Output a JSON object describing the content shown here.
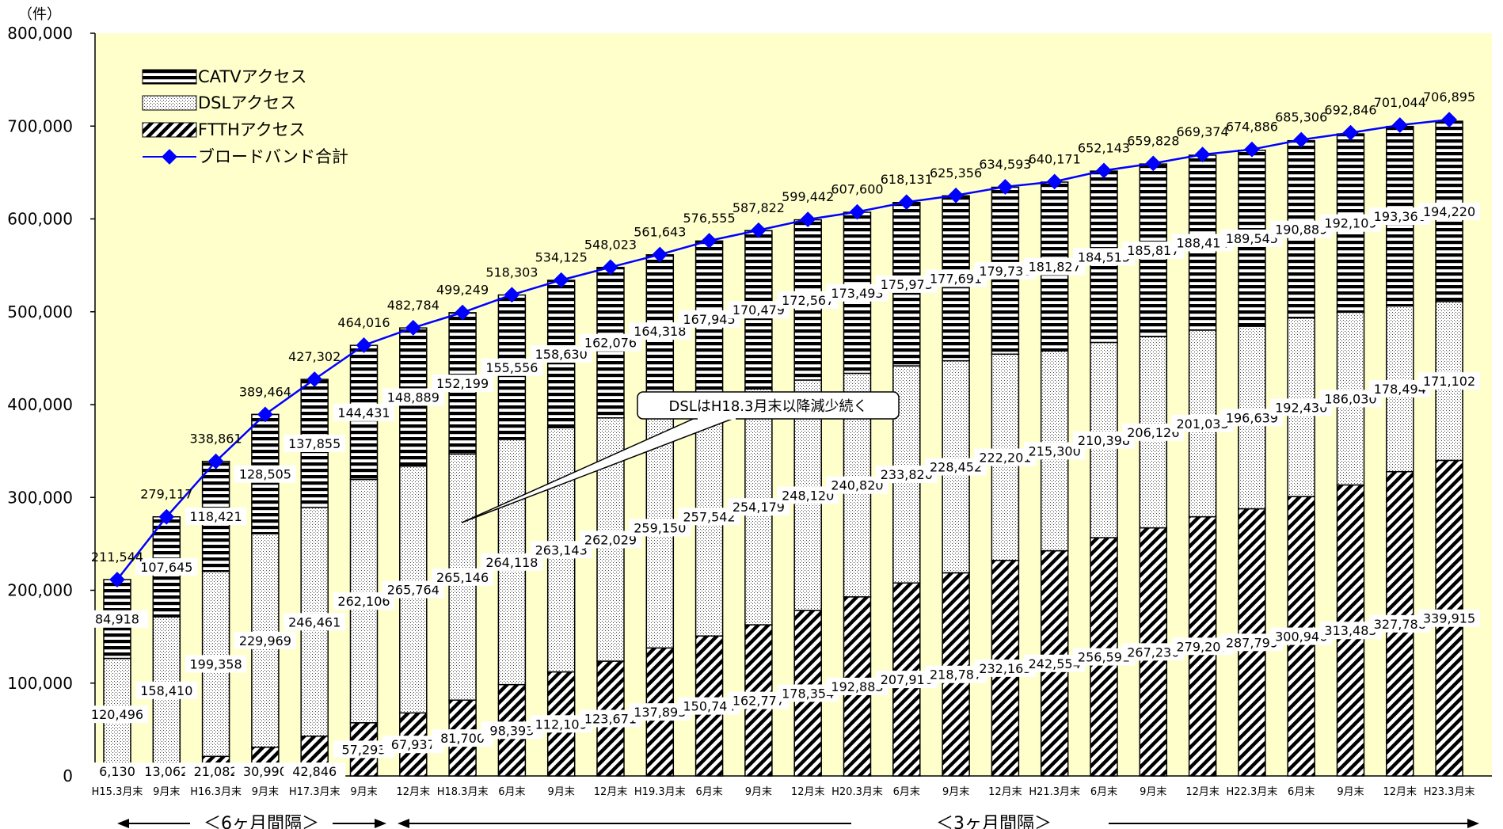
{
  "chart_data": {
    "type": "bar",
    "stacked": true,
    "y_unit": "（件）",
    "ylim": [
      0,
      800000
    ],
    "y_ticks": [
      "0",
      "100,000",
      "200,000",
      "300,000",
      "400,000",
      "500,000",
      "600,000",
      "700,000",
      "800,000"
    ],
    "grid": false,
    "legend_position": "top-left",
    "categories": [
      "H15.3月末",
      "9月末",
      "H16.3月末",
      "9月末",
      "H17.3月末",
      "9月末",
      "12月末",
      "H18.3月末",
      "6月末",
      "9月末",
      "12月末",
      "H19.3月末",
      "6月末",
      "9月末",
      "12月末",
      "H20.3月末",
      "6月末",
      "9月末",
      "12月末",
      "H21.3月末",
      "6月末",
      "9月末",
      "12月末",
      "H22.3月末",
      "6月末",
      "9月末",
      "12月末",
      "H23.3月末"
    ],
    "series": [
      {
        "name": "FTTHアクセス",
        "values": [
          6130,
          13062,
          21082,
          30990,
          42846,
          57293,
          67937,
          81700,
          98393,
          112109,
          123671,
          137893,
          150744,
          162777,
          178354,
          192883,
          207916,
          218787,
          232165,
          242554,
          256591,
          267230,
          279207,
          287799,
          300946,
          313485,
          327788,
          339915
        ]
      },
      {
        "name": "DSLアクセス",
        "values": [
          120496,
          158410,
          199358,
          229969,
          246461,
          262106,
          265764,
          265146,
          264118,
          263143,
          262029,
          259150,
          257542,
          254179,
          248120,
          240820,
          233820,
          228452,
          222201,
          215300,
          210398,
          206126,
          201033,
          196639,
          192430,
          186030,
          178494,
          171102
        ]
      },
      {
        "name": "CATVアクセス",
        "values": [
          84918,
          107645,
          118421,
          128505,
          137855,
          144431,
          148889,
          152199,
          155556,
          158630,
          162076,
          164318,
          167945,
          170479,
          172567,
          173493,
          175973,
          177691,
          179738,
          181827,
          184515,
          185817,
          188414,
          189545,
          190889,
          192109,
          193360,
          194220
        ]
      }
    ],
    "line": {
      "name": "ブロードバンド合計",
      "values": [
        211544,
        279117,
        338861,
        389464,
        427302,
        464016,
        482784,
        499249,
        518303,
        534125,
        548023,
        561643,
        576555,
        587822,
        599442,
        607600,
        618131,
        625356,
        634593,
        640171,
        652143,
        659828,
        669374,
        674886,
        685306,
        692846,
        701044,
        706895
      ],
      "color": "#0000ff"
    },
    "annotation": "DSLはH18.3月末以降減少続く",
    "interval_labels": [
      "＜6ヶ月間隔＞",
      "＜3ヶ月間隔＞"
    ],
    "colors": {
      "plot_bg": "#ffffcc",
      "line": "#0000ff"
    }
  }
}
